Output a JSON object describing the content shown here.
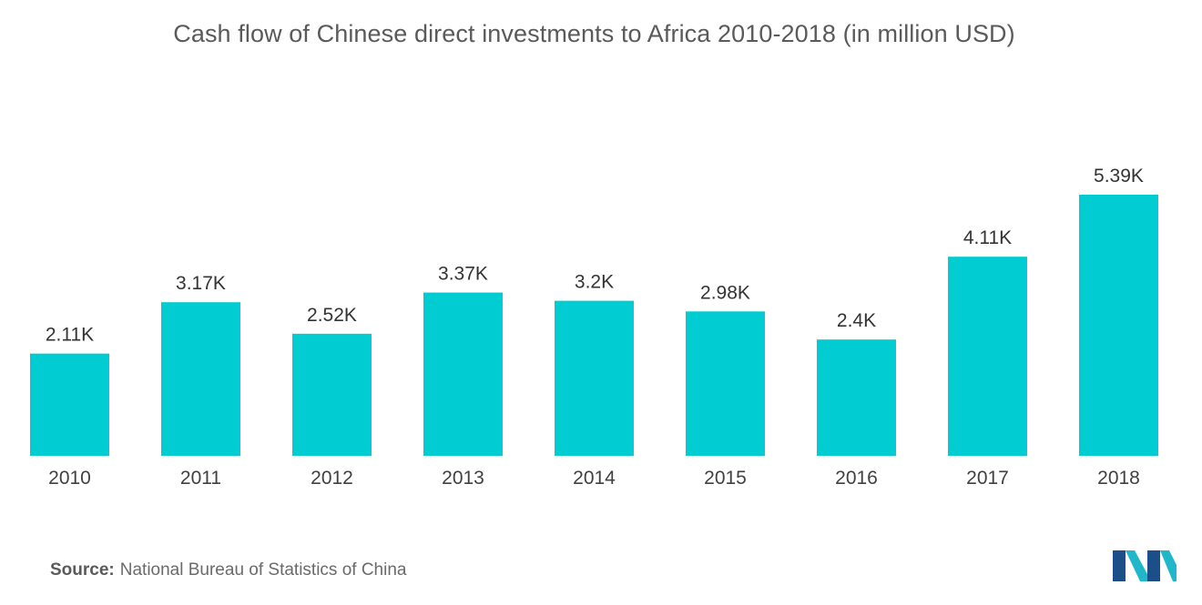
{
  "chart_data": {
    "type": "bar",
    "title": "Cash flow of Chinese direct investments to Africa 2010-2018 (in million USD)",
    "categories": [
      "2010",
      "2011",
      "2012",
      "2013",
      "2014",
      "2015",
      "2016",
      "2017",
      "2018"
    ],
    "values": [
      2110,
      3170,
      2520,
      3370,
      3200,
      2980,
      2400,
      4110,
      5390
    ],
    "value_labels": [
      "2.11K",
      "3.17K",
      "2.52K",
      "3.37K",
      "3.2K",
      "2.98K",
      "2.4K",
      "4.11K",
      "5.39K"
    ],
    "xlabel": "",
    "ylabel": "",
    "ylim": [
      0,
      5390
    ],
    "grid": false,
    "legend": "none",
    "bar_color": "#00ccd1"
  },
  "source": {
    "label": "Source:",
    "text": "National Bureau of Statistics of China"
  },
  "logo": {
    "icon": "mordor-intelligence-logo-icon",
    "colors": [
      "#1c4f8a",
      "#1fb7c9"
    ]
  }
}
